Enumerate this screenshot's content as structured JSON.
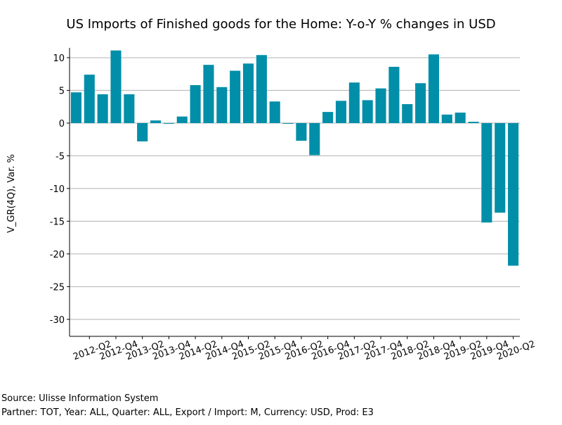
{
  "chart_data": {
    "type": "bar",
    "title": "US Imports of Finished goods for the Home: Y-o-Y % changes in USD",
    "y_label": "V_GR(4Q), Var. %",
    "categories": [
      null,
      "2012-Q2",
      null,
      "2012-Q4",
      null,
      "2013-Q2",
      null,
      "2013-Q4",
      null,
      "2014-Q2",
      null,
      "2014-Q4",
      null,
      "2015-Q2",
      null,
      "2015-Q4",
      null,
      "2016-Q2",
      null,
      "2016-Q4",
      null,
      "2017-Q2",
      null,
      "2017-Q4",
      null,
      "2018-Q2",
      null,
      "2018-Q4",
      null,
      "2019-Q2",
      null,
      "2019-Q4",
      null,
      "2020-Q2"
    ],
    "values": [
      4.7,
      7.4,
      4.4,
      11.1,
      4.4,
      -2.8,
      0.4,
      -0.1,
      1.0,
      5.8,
      8.9,
      5.5,
      8.0,
      9.1,
      10.4,
      3.3,
      -0.1,
      -2.7,
      -4.9,
      1.7,
      3.4,
      6.2,
      3.5,
      5.3,
      8.6,
      2.9,
      6.1,
      10.5,
      1.3,
      1.6,
      0.2,
      -15.2,
      -13.7,
      -21.8
    ],
    "color": "#008ea8",
    "ylim": [
      -32.6,
      11.5
    ],
    "yticks": [
      -30,
      -25,
      -20,
      -15,
      -10,
      -5,
      0,
      5,
      10
    ],
    "grid": true,
    "footer": [
      "Source: Ulisse Information System",
      "Partner: TOT, Year: ALL, Quarter: ALL, Export / Import: M, Currency: USD, Prod: E3"
    ]
  }
}
